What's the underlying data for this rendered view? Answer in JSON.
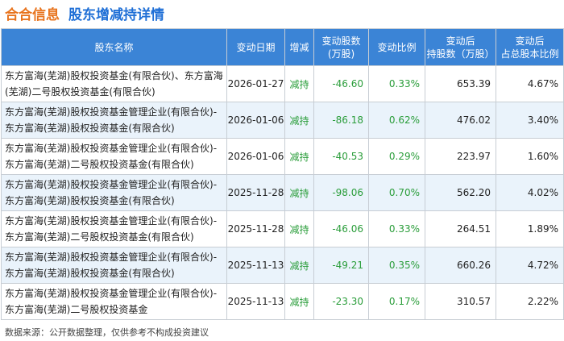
{
  "header": {
    "company": "合合信息",
    "subtitle": "股东增减持详情"
  },
  "table": {
    "columns": [
      "股东名称",
      "变动日期",
      "增减",
      "变动股数\n(万股)",
      "变动比例",
      "变动后\n持股数（万股）",
      "变动后\n占总股本比例"
    ],
    "rows": [
      {
        "name": "东方富海(芜湖)股权投资基金(有限合伙)、东方富海(芜湖)二号股权投资基金(有限合伙)",
        "date": "2026-01-27",
        "dir": "减持",
        "shares": "-46.60",
        "ratio": "0.33%",
        "after": "653.39",
        "pct": "4.67%"
      },
      {
        "name": "东方富海(芜湖)股权投资基金管理企业(有限合伙)-东方富海(芜湖)股权投资基金(有限合伙)",
        "date": "2026-01-06",
        "dir": "减持",
        "shares": "-86.18",
        "ratio": "0.62%",
        "after": "476.02",
        "pct": "3.40%"
      },
      {
        "name": "东方富海(芜湖)股权投资基金管理企业(有限合伙)-东方富海(芜湖)二号股权投资基金(有限合伙)",
        "date": "2026-01-06",
        "dir": "减持",
        "shares": "-40.53",
        "ratio": "0.29%",
        "after": "223.97",
        "pct": "1.60%"
      },
      {
        "name": "东方富海(芜湖)股权投资基金管理企业(有限合伙)-东方富海(芜湖)股权投资基金(有限合伙)",
        "date": "2025-11-28",
        "dir": "减持",
        "shares": "-98.06",
        "ratio": "0.70%",
        "after": "562.20",
        "pct": "4.02%"
      },
      {
        "name": "东方富海(芜湖)股权投资基金管理企业(有限合伙)-东方富海(芜湖)二号股权投资基金(有限合伙)",
        "date": "2025-11-28",
        "dir": "减持",
        "shares": "-46.06",
        "ratio": "0.33%",
        "after": "264.51",
        "pct": "1.89%"
      },
      {
        "name": "东方富海(芜湖)股权投资基金管理企业(有限合伙)-东方富海(芜湖)股权投资基金(有限合伙)",
        "date": "2025-11-13",
        "dir": "减持",
        "shares": "-49.21",
        "ratio": "0.35%",
        "after": "660.26",
        "pct": "4.72%"
      },
      {
        "name": "东方富海(芜湖)股权投资基金管理企业(有限合伙)-东方富海(芜湖)二号股权投资基金",
        "date": "2025-11-13",
        "dir": "减持",
        "shares": "-23.30",
        "ratio": "0.17%",
        "after": "310.57",
        "pct": "2.22%"
      }
    ]
  },
  "footer": {
    "source": "数据来源：公开数据整理，仅供参考不构成投资建议"
  },
  "colors": {
    "brand_orange": "#e8741e",
    "title_blue": "#1f6fd6",
    "header_bg": "#3b84d6",
    "decrease_green": "#2a9d3a",
    "row_alt": "#eaf3fb"
  }
}
